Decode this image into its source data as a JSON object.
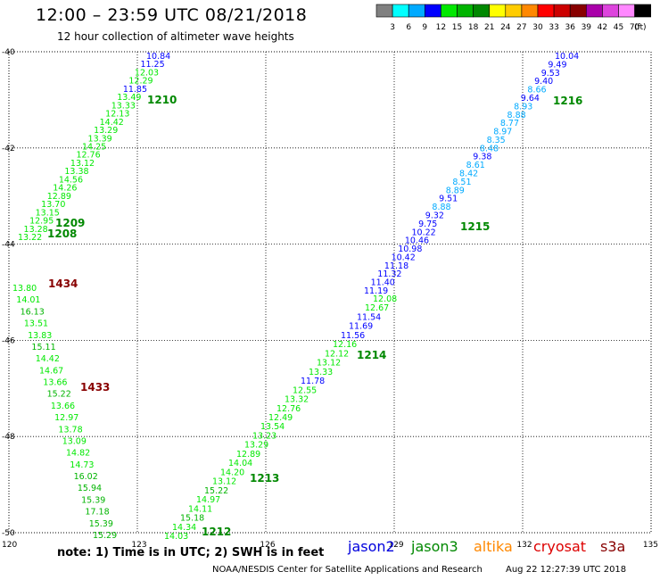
{
  "title": "12:00 – 23:59 UTC 08/21/2018",
  "subtitle": "12 hour collection of altimeter wave heights",
  "color_scale": {
    "unit": "(ft)",
    "bins": [
      {
        "color": "#808080",
        "label": "3"
      },
      {
        "color": "#00ffff",
        "label": "6"
      },
      {
        "color": "#00aaff",
        "label": "9"
      },
      {
        "color": "#0000ff",
        "label": "12"
      },
      {
        "color": "#00e800",
        "label": "15"
      },
      {
        "color": "#00b400",
        "label": "18"
      },
      {
        "color": "#008800",
        "label": "21"
      },
      {
        "color": "#ffff00",
        "label": "24"
      },
      {
        "color": "#ffcc00",
        "label": "27"
      },
      {
        "color": "#ff8800",
        "label": "30"
      },
      {
        "color": "#ff0000",
        "label": "33"
      },
      {
        "color": "#cc0000",
        "label": "36"
      },
      {
        "color": "#880000",
        "label": "39"
      },
      {
        "color": "#aa00aa",
        "label": "42"
      },
      {
        "color": "#dd44dd",
        "label": "45"
      },
      {
        "color": "#ff88ff",
        "label": "70"
      },
      {
        "color": "#000000",
        "label": ""
      }
    ]
  },
  "map": {
    "lon_ticks": [
      "120",
      "123",
      "126",
      "129",
      "132",
      "135"
    ],
    "lat_ticks": [
      "-40",
      "-42",
      "-44",
      "-46",
      "-48",
      "-50"
    ],
    "grid": true
  },
  "tracks": [
    {
      "id": "1210",
      "color": "#008800",
      "values": [
        "10.84",
        "11.25",
        "12.03",
        "12.29",
        "11.85",
        "13.49",
        "13.33",
        "12.13",
        "14.42",
        "13.29",
        "13.39",
        "14.25",
        "12.76",
        "13.12",
        "13.38",
        "14.56",
        "14.26",
        "12.89",
        "13.70",
        "13.15",
        "12.95",
        "13.28",
        "13.22"
      ],
      "colors": [
        "#0000ff",
        "#0000ff",
        "#00e800",
        "#00e800",
        "#0000ff",
        "#00e800",
        "#00e800",
        "#00e800",
        "#00e800",
        "#00e800",
        "#00e800",
        "#00e800",
        "#00e800",
        "#00e800",
        "#00e800",
        "#00e800",
        "#00e800",
        "#00e800",
        "#00e800",
        "#00e800",
        "#00e800",
        "#00e800",
        "#00e800"
      ]
    },
    {
      "id": "1209",
      "color": "#008800"
    },
    {
      "id": "1208",
      "color": "#008800"
    },
    {
      "id": "1434",
      "color": "#880000",
      "values": [
        "13.80",
        "14.01",
        "16.13",
        "13.51",
        "13.83",
        "15.11",
        "14.42",
        "14.67",
        "13.66",
        "15.22",
        "13.66",
        "12.97",
        "13.78",
        "13.09",
        "14.82",
        "14.73",
        "16.02",
        "15.94",
        "15.39",
        "17.18",
        "15.39",
        "15.29"
      ],
      "colors": [
        "#00e800",
        "#00e800",
        "#00b400",
        "#00e800",
        "#00e800",
        "#00b400",
        "#00e800",
        "#00e800",
        "#00e800",
        "#00b400",
        "#00e800",
        "#00e800",
        "#00e800",
        "#00e800",
        "#00e800",
        "#00e800",
        "#00b400",
        "#00b400",
        "#00b400",
        "#00b400",
        "#00b400",
        "#00b400"
      ]
    },
    {
      "id": "1433",
      "color": "#880000"
    },
    {
      "id": "1216",
      "color": "#008800",
      "values": [
        "10.04",
        "9.49",
        "9.53",
        "9.40",
        "8.66",
        "9.64",
        "8.93",
        "8.88",
        "8.77",
        "8.97",
        "8.35",
        "8.48",
        "9.38",
        "8.61",
        "8.42",
        "8.51",
        "8.89",
        "9.51",
        "8.88",
        "9.32",
        "9.75",
        "10.22",
        "10.46",
        "10.98",
        "10.42",
        "11.18",
        "11.32",
        "11.40",
        "11.19"
      ],
      "colors": [
        "#0000ff",
        "#0000ff",
        "#0000ff",
        "#0000ff",
        "#00aaff",
        "#0000ff",
        "#00aaff",
        "#00aaff",
        "#00aaff",
        "#00aaff",
        "#00aaff",
        "#00aaff",
        "#0000ff",
        "#00aaff",
        "#00aaff",
        "#00aaff",
        "#00aaff",
        "#0000ff",
        "#00aaff",
        "#0000ff",
        "#0000ff",
        "#0000ff",
        "#0000ff",
        "#0000ff",
        "#0000ff",
        "#0000ff",
        "#0000ff",
        "#0000ff",
        "#0000ff"
      ]
    },
    {
      "id": "1215",
      "color": "#008800"
    },
    {
      "id": "1214",
      "color": "#008800",
      "values": [
        "12.08",
        "12.67",
        "11.54",
        "11.69",
        "11.56",
        "12.16",
        "12.12",
        "13.12",
        "13.33",
        "11.78",
        "12.55",
        "13.32",
        "12.76",
        "12.49",
        "13.54",
        "13.23",
        "13.29",
        "12.89",
        "14.04",
        "14.20",
        "13.12",
        "15.22",
        "14.97",
        "14.11",
        "15.18",
        "14.34",
        "14.03"
      ],
      "colors": [
        "#00e800",
        "#00e800",
        "#0000ff",
        "#0000ff",
        "#0000ff",
        "#00e800",
        "#00e800",
        "#00e800",
        "#00e800",
        "#0000ff",
        "#00e800",
        "#00e800",
        "#00e800",
        "#00e800",
        "#00e800",
        "#00e800",
        "#00e800",
        "#00e800",
        "#00e800",
        "#00e800",
        "#00e800",
        "#00b400",
        "#00e800",
        "#00e800",
        "#00b400",
        "#00e800",
        "#00e800"
      ]
    },
    {
      "id": "1213",
      "color": "#008800"
    },
    {
      "id": "1212",
      "color": "#008800"
    }
  ],
  "footer": {
    "note": "note:  1) Time is in UTC;  2) SWH is in feet",
    "satellites": [
      {
        "name": "jason2",
        "color": "#0000dd"
      },
      {
        "name": "jason3",
        "color": "#008800"
      },
      {
        "name": "altika",
        "color": "#ff8800"
      },
      {
        "name": "cryosat",
        "color": "#dd0000"
      },
      {
        "name": "s3a",
        "color": "#880000"
      }
    ],
    "credit": "NOAA/NESDIS Center for Satellite Applications and Research",
    "timestamp": "Aug 22 12:27:39 UTC 2018"
  }
}
